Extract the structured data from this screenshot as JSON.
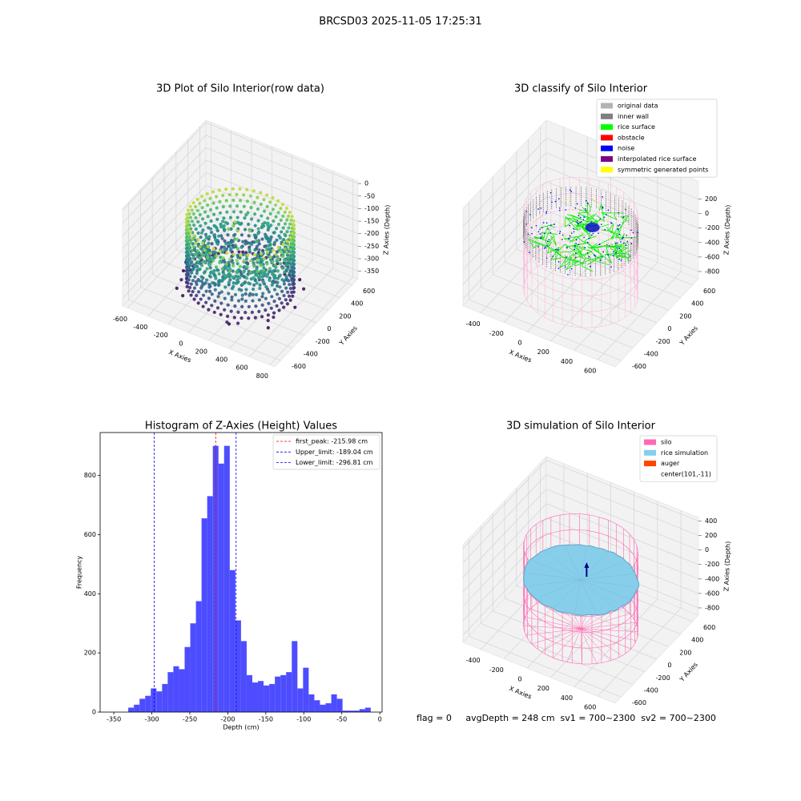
{
  "title": "BRCSD03 2025-11-05 17:25:31",
  "chart_data": [
    {
      "type": "scatter3d",
      "title": "3D Plot of Silo Interior(row data)",
      "x_label": "X Axies",
      "y_label": "Y Axies",
      "z_label": "Z Axies (Depth)",
      "xlim": [
        -650,
        850
      ],
      "ylim": [
        -700,
        700
      ],
      "zlim": [
        -380,
        10
      ],
      "xticks": [
        -600,
        -400,
        -200,
        0,
        200,
        400,
        600,
        800
      ],
      "yticks": [
        -600,
        -400,
        -200,
        0,
        200,
        400,
        600
      ],
      "zticks": [
        -350,
        -300,
        -250,
        -200,
        -150,
        -100,
        -50,
        0
      ]
    },
    {
      "type": "scatter3d",
      "title": "3D classify of Silo Interior",
      "x_label": "X Axies",
      "y_label": "Y Axies",
      "z_label": "Z Axies (Depth)",
      "xlim": [
        -550,
        750
      ],
      "ylim": [
        -700,
        700
      ],
      "zlim": [
        -900,
        450
      ],
      "xticks": [
        -400,
        -200,
        0,
        200,
        400,
        600
      ],
      "yticks": [
        -600,
        -400,
        -200,
        0,
        200,
        400,
        600
      ],
      "zticks": [
        -800,
        -600,
        -400,
        -200,
        0,
        200
      ],
      "legend": [
        {
          "name": "original data",
          "color": "#b3b3b3"
        },
        {
          "name": "inner wall",
          "color": "#808080"
        },
        {
          "name": "rice surface",
          "color": "#00ff00"
        },
        {
          "name": "obstacle",
          "color": "#ff0000"
        },
        {
          "name": "noise",
          "color": "#0000ff"
        },
        {
          "name": "interpolated rice surface",
          "color": "#800080"
        },
        {
          "name": "symmetric generated points",
          "color": "#ffff00"
        }
      ]
    },
    {
      "type": "histogram",
      "title": "Histogram of Z-Axies (Height) Values",
      "x_label": "Depth (cm)",
      "y_label": "Frequency",
      "color": "#4d4dff",
      "bins": [
        -331,
        -323.58,
        -316.16,
        -308.74,
        -301.32,
        -293.9,
        -286.48,
        -279.06,
        -271.64,
        -264.22,
        -256.8,
        -249.38,
        -241.96,
        -234.54,
        -227.12,
        -219.7,
        -212.28,
        -204.86,
        -197.44,
        -190.02,
        -182.6,
        -175.18,
        -167.76,
        -160.34,
        -152.92,
        -145.5,
        -138.08,
        -130.66,
        -123.24,
        -115.82,
        -108.4,
        -100.98,
        -93.56,
        -86.14,
        -78.72,
        -71.3,
        -63.88,
        -56.46,
        -49.04,
        -41.62,
        -34.2,
        -26.78,
        -19.36,
        -11.94
      ],
      "counts": [
        15,
        25,
        45,
        55,
        80,
        70,
        95,
        135,
        155,
        145,
        220,
        300,
        375,
        655,
        730,
        900,
        840,
        900,
        480,
        310,
        240,
        125,
        100,
        105,
        90,
        95,
        120,
        125,
        135,
        240,
        80,
        150,
        60,
        40,
        25,
        30,
        60,
        45,
        5,
        5,
        5,
        10,
        15
      ],
      "xlim": [
        -368,
        3
      ],
      "ylim": [
        0,
        945
      ],
      "xticks": [
        -350,
        -300,
        -250,
        -200,
        -150,
        -100,
        -50,
        0
      ],
      "yticks": [
        0,
        200,
        400,
        600,
        800
      ],
      "vlines": [
        {
          "label": "first_peak: -215.98 cm",
          "value": -215.98,
          "color": "#ff0000"
        },
        {
          "label": "Upper_limit: -189.04 cm",
          "value": -189.04,
          "color": "#0000ff"
        },
        {
          "label": "Lower_limit: -296.81 cm",
          "value": -296.81,
          "color": "#0000ff"
        }
      ]
    },
    {
      "type": "surface3d",
      "title": "3D simulation of Silo Interior",
      "x_label": "X Axies",
      "y_label": "Y Axies",
      "z_label": "Z Axies (Depth)",
      "xlim": [
        -550,
        750
      ],
      "ylim": [
        -700,
        700
      ],
      "zlim": [
        -900,
        450
      ],
      "xticks": [
        -400,
        -200,
        0,
        200,
        400,
        600
      ],
      "yticks": [
        -600,
        -400,
        -200,
        0,
        200,
        400,
        600
      ],
      "zticks": [
        -800,
        -600,
        -400,
        -200,
        0,
        200,
        400
      ],
      "legend": [
        {
          "name": "silo",
          "color": "#ff69b4"
        },
        {
          "name": "rice simulation",
          "color": "#87ceeb"
        },
        {
          "name": "auger",
          "color": "#ff4500"
        },
        {
          "name": "center(101,-11)"
        }
      ]
    }
  ],
  "footer": "flag = 0     avgDepth = 248 cm  sv1 = 700~2300  sv2 = 700~2300"
}
